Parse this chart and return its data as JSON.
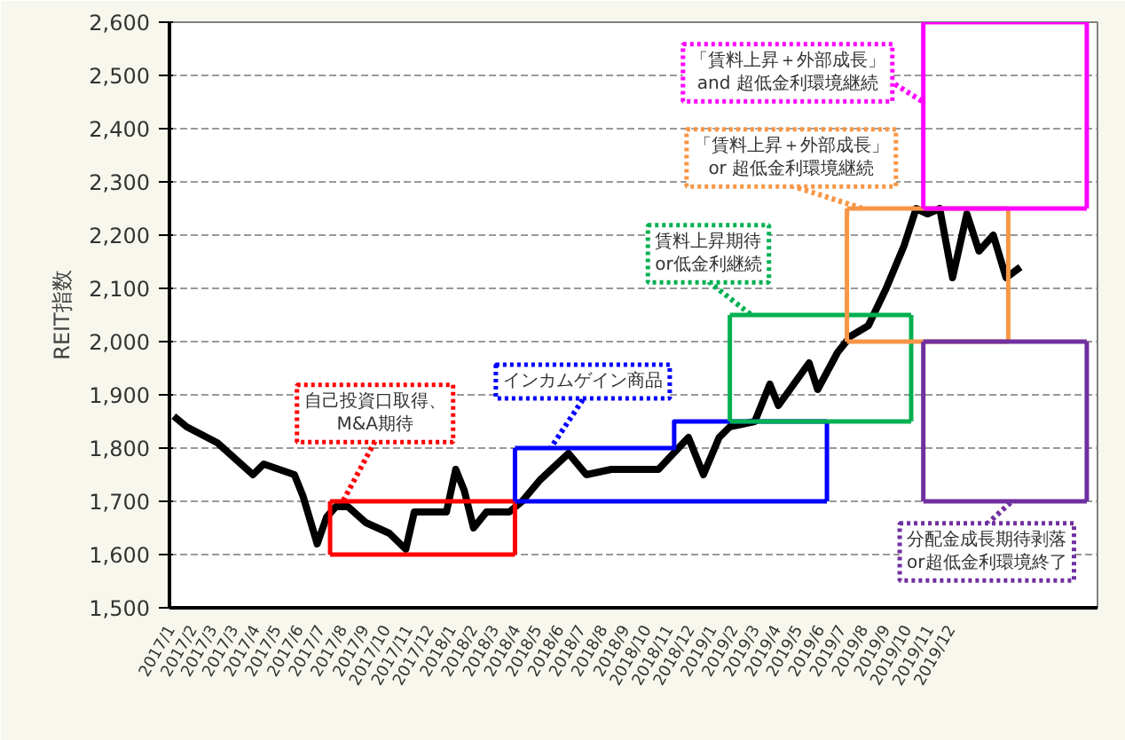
{
  "chart_data": {
    "type": "line",
    "ylabel": "REIT指数",
    "xlim": [
      "2016-12-28",
      "2020-07-20"
    ],
    "ylim": [
      1500,
      2600
    ],
    "yticks": [
      {
        "value": 1500,
        "label": "1,500"
      },
      {
        "value": 1600,
        "label": "1,600"
      },
      {
        "value": 1700,
        "label": "1,700"
      },
      {
        "value": 1800,
        "label": "1,800"
      },
      {
        "value": 1900,
        "label": "1,900"
      },
      {
        "value": 2000,
        "label": "2,000"
      },
      {
        "value": 2100,
        "label": "2,100"
      },
      {
        "value": 2200,
        "label": "2,200"
      },
      {
        "value": 2300,
        "label": "2,300"
      },
      {
        "value": 2400,
        "label": "2,400"
      },
      {
        "value": 2500,
        "label": "2,500"
      },
      {
        "value": 2600,
        "label": "2,600"
      }
    ],
    "xticks": [
      {
        "value": "2017-01-01",
        "label": "2017/1"
      },
      {
        "value": "2017-02-01",
        "label": "2017/2"
      },
      {
        "value": "2017-03-01",
        "label": "2017/3"
      },
      {
        "value": "2017-03-31",
        "label": "2017/3"
      },
      {
        "value": "2017-04-30",
        "label": "2017/4"
      },
      {
        "value": "2017-05-30",
        "label": "2017/5"
      },
      {
        "value": "2017-06-30",
        "label": "2017/6"
      },
      {
        "value": "2017-07-30",
        "label": "2017/7"
      },
      {
        "value": "2017-08-30",
        "label": "2017/8"
      },
      {
        "value": "2017-09-30",
        "label": "2017/9"
      },
      {
        "value": "2017-10-30",
        "label": "2017/10"
      },
      {
        "value": "2017-11-30",
        "label": "2017/11"
      },
      {
        "value": "2017-12-30",
        "label": "2017/12"
      },
      {
        "value": "2018-01-30",
        "label": "2018/1"
      },
      {
        "value": "2018-03-01",
        "label": "2018/2"
      },
      {
        "value": "2018-03-31",
        "label": "2018/3"
      },
      {
        "value": "2018-04-30",
        "label": "2018/4"
      },
      {
        "value": "2018-05-30",
        "label": "2018/5"
      },
      {
        "value": "2018-06-30",
        "label": "2018/6"
      },
      {
        "value": "2018-07-30",
        "label": "2018/7"
      },
      {
        "value": "2018-08-30",
        "label": "2018/8"
      },
      {
        "value": "2018-09-30",
        "label": "2018/9"
      },
      {
        "value": "2018-10-30",
        "label": "2018/10"
      },
      {
        "value": "2018-11-30",
        "label": "2018/11"
      },
      {
        "value": "2018-12-30",
        "label": "2018/12"
      },
      {
        "value": "2019-01-30",
        "label": "2019/1"
      },
      {
        "value": "2019-03-01",
        "label": "2019/2"
      },
      {
        "value": "2019-03-31",
        "label": "2019/3"
      },
      {
        "value": "2019-04-30",
        "label": "2019/4"
      },
      {
        "value": "2019-05-30",
        "label": "2019/5"
      },
      {
        "value": "2019-06-30",
        "label": "2019/6"
      },
      {
        "value": "2019-07-30",
        "label": "2019/7"
      },
      {
        "value": "2019-08-30",
        "label": "2019/8"
      },
      {
        "value": "2019-09-30",
        "label": "2019/9"
      },
      {
        "value": "2019-10-30",
        "label": "2019/10"
      },
      {
        "value": "2019-11-30",
        "label": "2019/11"
      },
      {
        "value": "2019-12-30",
        "label": "2019/12"
      }
    ],
    "grid": "y",
    "line_style": "solid",
    "marker": "none",
    "series": [
      {
        "color": "#000000",
        "x": [
          "2017-01-03",
          "2017-01-21",
          "2017-03-05",
          "2017-04-24",
          "2017-05-09",
          "2017-06-21",
          "2017-07-03",
          "2017-07-23",
          "2017-08-05",
          "2017-08-18",
          "2017-09-04",
          "2017-09-29",
          "2017-11-01",
          "2017-11-24",
          "2017-12-06",
          "2017-12-31",
          "2018-01-20",
          "2018-02-02",
          "2018-02-14",
          "2018-02-27",
          "2018-03-17",
          "2018-04-18",
          "2018-05-06",
          "2018-05-31",
          "2018-07-10",
          "2018-08-04",
          "2018-09-08",
          "2018-10-19",
          "2018-11-13",
          "2018-12-25",
          "2019-01-15",
          "2019-02-06",
          "2019-02-21",
          "2019-03-28",
          "2019-04-18",
          "2019-04-30",
          "2019-06-12",
          "2019-06-24",
          "2019-07-22",
          "2019-08-09",
          "2019-09-03",
          "2019-09-28",
          "2019-10-23",
          "2019-11-09",
          "2019-11-25",
          "2019-12-12",
          "2019-12-30",
          "2020-01-19",
          "2020-02-05",
          "2020-02-25",
          "2020-03-14",
          "2020-04-03"
        ],
        "values": [
          1860,
          1840,
          1810,
          1750,
          1770,
          1750,
          1710,
          1620,
          1670,
          1690,
          1690,
          1660,
          1640,
          1610,
          1680,
          1680,
          1680,
          1760,
          1720,
          1650,
          1680,
          1680,
          1700,
          1740,
          1790,
          1750,
          1760,
          1760,
          1760,
          1820,
          1750,
          1820,
          1840,
          1850,
          1920,
          1880,
          1960,
          1910,
          1980,
          2010,
          2030,
          2100,
          2180,
          2250,
          2240,
          2250,
          2120,
          2240,
          2170,
          2200,
          2120,
          2140
        ]
      },
      {
        "color": "#ff0000",
        "x": [
          "2017-08-10",
          "2018-04-26"
        ],
        "values": [
          1600,
          1600
        ]
      },
      {
        "color": "#ff0000",
        "x": [
          "2017-08-10",
          "2018-04-26"
        ],
        "values": [
          1700,
          1700
        ]
      },
      {
        "color": "#ff0000",
        "x": [
          "2017-08-10",
          "2017-08-10"
        ],
        "values": [
          1600,
          1700
        ]
      },
      {
        "color": "#ff0000",
        "x": [
          "2018-04-26",
          "2018-04-26"
        ],
        "values": [
          1600,
          1700
        ]
      },
      {
        "color": "#0000ff",
        "x": [
          "2018-04-26",
          "2019-07-07"
        ],
        "values": [
          1700,
          1700
        ]
      },
      {
        "type": "step",
        "color": "#0000ff",
        "x": [
          "2018-04-26",
          "2018-12-05",
          "2019-07-07"
        ],
        "values": [
          1800,
          1850,
          1850
        ]
      },
      {
        "color": "#0000ff",
        "x": [
          "2018-04-26",
          "2018-04-26"
        ],
        "values": [
          1700,
          1800
        ]
      },
      {
        "color": "#0000ff",
        "x": [
          "2019-07-07",
          "2019-07-07"
        ],
        "values": [
          1700,
          1850
        ]
      },
      {
        "color": "#00b050",
        "x": [
          "2019-02-21",
          "2019-11-02"
        ],
        "values": [
          1850,
          1850
        ]
      },
      {
        "color": "#00b050",
        "x": [
          "2019-02-21",
          "2019-11-02"
        ],
        "values": [
          2050,
          2050
        ]
      },
      {
        "color": "#00b050",
        "x": [
          "2019-02-21",
          "2019-02-21"
        ],
        "values": [
          1850,
          2050
        ]
      },
      {
        "color": "#00b050",
        "x": [
          "2019-11-02",
          "2019-11-02"
        ],
        "values": [
          1850,
          2050
        ]
      },
      {
        "color": "#f79646",
        "x": [
          "2019-08-04",
          "2020-03-17"
        ],
        "values": [
          2000,
          2000
        ]
      },
      {
        "color": "#f79646",
        "x": [
          "2019-08-04",
          "2020-03-17"
        ],
        "values": [
          2250,
          2250
        ]
      },
      {
        "color": "#f79646",
        "x": [
          "2019-08-04",
          "2019-08-04"
        ],
        "values": [
          2000,
          2250
        ]
      },
      {
        "color": "#f79646",
        "x": [
          "2020-03-17",
          "2020-03-17"
        ],
        "values": [
          2000,
          2250
        ]
      },
      {
        "color": "#ff00ff",
        "x": [
          "2019-11-19",
          "2020-07-05"
        ],
        "values": [
          2250,
          2250
        ]
      },
      {
        "color": "#ff00ff",
        "x": [
          "2019-11-19",
          "2020-07-05"
        ],
        "values": [
          2600,
          2600
        ]
      },
      {
        "color": "#ff00ff",
        "x": [
          "2019-11-19",
          "2019-11-19"
        ],
        "values": [
          2250,
          2600
        ]
      },
      {
        "color": "#ff00ff",
        "x": [
          "2020-07-05",
          "2020-07-05"
        ],
        "values": [
          2250,
          2600
        ]
      },
      {
        "color": "#7030a0",
        "x": [
          "2019-11-19",
          "2020-07-05"
        ],
        "values": [
          1700,
          1700
        ]
      },
      {
        "color": "#7030a0",
        "x": [
          "2019-11-19",
          "2020-07-05"
        ],
        "values": [
          2000,
          2000
        ]
      },
      {
        "color": "#7030a0",
        "x": [
          "2019-11-19",
          "2019-11-19"
        ],
        "values": [
          1700,
          2000
        ]
      },
      {
        "color": "#7030a0",
        "x": [
          "2020-07-05",
          "2020-07-05"
        ],
        "values": [
          1700,
          2000
        ]
      }
    ],
    "annotations": [
      {
        "text": "自己投資口取得、\nM&A期待",
        "x": "2017-08-28",
        "y": 1700
      },
      {
        "text": "インカムゲイン商品",
        "x": "2018-06-15",
        "y": 1800
      },
      {
        "text": "賃料上昇期待\nor低金利継続",
        "x": "2019-03-23",
        "y": 2050
      },
      {
        "text": "「賃料上昇＋外部成長」\nor 超低金利環境継続",
        "x": "2019-08-26",
        "y": 2250
      },
      {
        "text": "「賃料上昇＋外部成長」\nand 超低金利環境継続",
        "x": "2019-11-19",
        "y": 2450
      },
      {
        "text": "分配金成長期待剥落\nor超低金利環境終了",
        "x": "2020-03-22",
        "y": 1700
      }
    ]
  }
}
